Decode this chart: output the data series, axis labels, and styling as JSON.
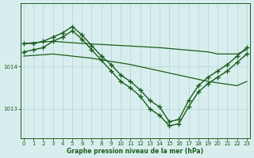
{
  "title": "Graphe pression niveau de la mer (hPa)",
  "bg_color": "#d8eeee",
  "line_color": "#1a5c1a",
  "grid_color": "#b8d8d8",
  "yticks": [
    1013,
    1014
  ],
  "ylim": [
    1012.3,
    1015.5
  ],
  "xlim": [
    -0.3,
    23.3
  ],
  "xticks": [
    0,
    1,
    2,
    3,
    4,
    5,
    6,
    7,
    8,
    9,
    10,
    11,
    12,
    13,
    14,
    15,
    16,
    17,
    18,
    19,
    20,
    21,
    22,
    23
  ],
  "series_flat1_x": [
    0,
    3,
    6,
    10,
    14,
    19,
    20,
    22,
    23
  ],
  "series_flat1_y": [
    1014.55,
    1014.6,
    1014.55,
    1014.5,
    1014.45,
    1014.35,
    1014.3,
    1014.3,
    1014.4
  ],
  "series_flat2_x": [
    0,
    3,
    7,
    11,
    15,
    19,
    22,
    23
  ],
  "series_flat2_y": [
    1014.25,
    1014.3,
    1014.2,
    1014.05,
    1013.85,
    1013.65,
    1013.55,
    1013.65
  ],
  "series_curve1_x": [
    0,
    1,
    2,
    3,
    4,
    5,
    6,
    7,
    8,
    9,
    10,
    11,
    12,
    13,
    14,
    15,
    16,
    17,
    18,
    19,
    20,
    21,
    22,
    23
  ],
  "series_curve1_y": [
    1014.55,
    1014.55,
    1014.6,
    1014.7,
    1014.8,
    1014.95,
    1014.75,
    1014.5,
    1014.25,
    1014.05,
    1013.8,
    1013.65,
    1013.45,
    1013.2,
    1013.05,
    1012.7,
    1012.75,
    1013.2,
    1013.55,
    1013.75,
    1013.9,
    1014.05,
    1014.25,
    1014.45
  ],
  "series_curve2_x": [
    0,
    1,
    2,
    3,
    4,
    5,
    6,
    7,
    8,
    9,
    10,
    11,
    12,
    13,
    14,
    15,
    16,
    17,
    18,
    19,
    20,
    21,
    22,
    23
  ],
  "series_curve2_y": [
    1014.35,
    1014.4,
    1014.45,
    1014.6,
    1014.7,
    1014.85,
    1014.65,
    1014.4,
    1014.15,
    1013.9,
    1013.65,
    1013.5,
    1013.3,
    1013.0,
    1012.85,
    1012.6,
    1012.65,
    1013.05,
    1013.4,
    1013.6,
    1013.75,
    1013.9,
    1014.1,
    1014.3
  ],
  "marker": "+",
  "markersize": 4.5,
  "linewidth": 1.0,
  "flat_linewidth": 0.9
}
